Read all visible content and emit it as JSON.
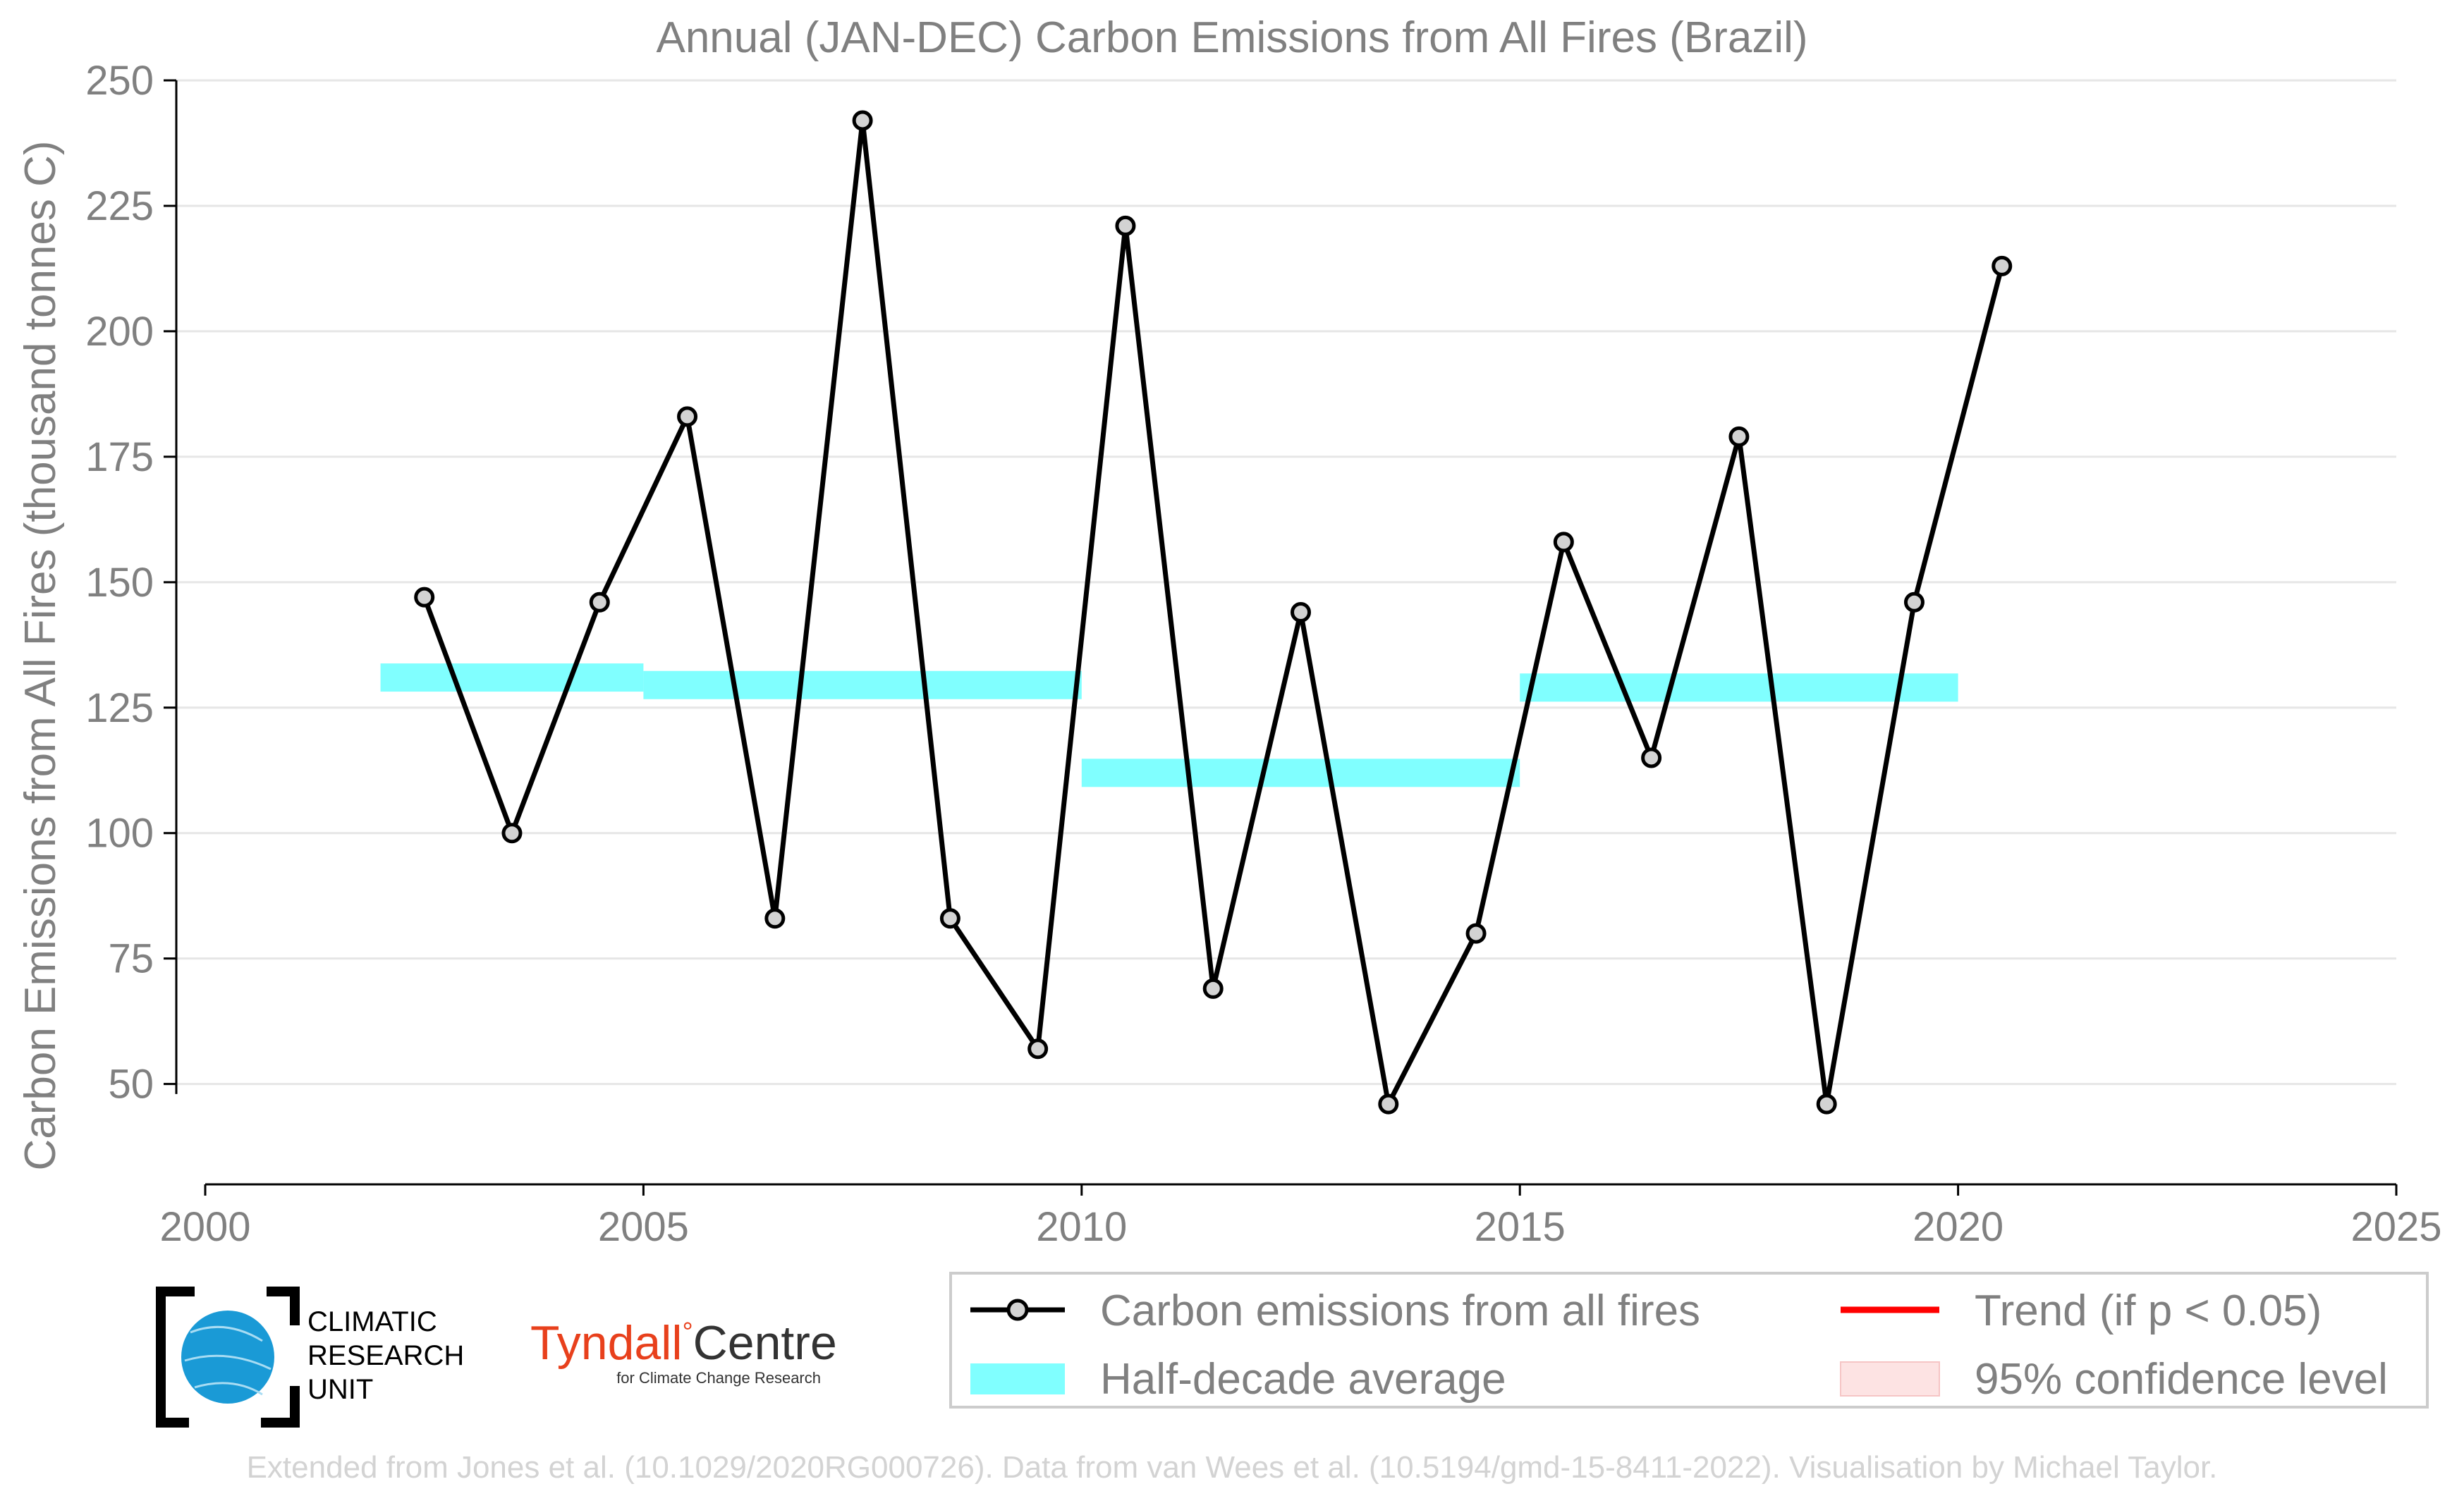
{
  "chart_data": {
    "type": "line",
    "title": "Annual (JAN-DEC) Carbon Emissions from All Fires (Brazil)",
    "xlabel": "",
    "ylabel": "Carbon Emissions from All Fires (thousand tonnes C)",
    "xlim": [
      2000,
      2025
    ],
    "ylim": [
      30,
      250
    ],
    "xticks": [
      "2000",
      "2005",
      "2010",
      "2015",
      "2020",
      "2025"
    ],
    "yticks": [
      "50",
      "75",
      "100",
      "125",
      "150",
      "175",
      "200",
      "225",
      "250"
    ],
    "grid": "horizontal",
    "series": [
      {
        "name": "Carbon emissions from all fires",
        "color": "#000000",
        "marker_fill": "#d3d3d3",
        "x": [
          2002.5,
          2003.5,
          2004.5,
          2005.5,
          2006.5,
          2007.5,
          2008.5,
          2009.5,
          2010.5,
          2011.5,
          2012.5,
          2013.5,
          2014.5,
          2015.5,
          2016.5,
          2017.5,
          2018.5,
          2019.5,
          2020.5
        ],
        "y": [
          147,
          100,
          146,
          183,
          83,
          242,
          83,
          57,
          221,
          69,
          144,
          46,
          80,
          158,
          115,
          179,
          46,
          146,
          213
        ]
      },
      {
        "name": "Half-decade average",
        "color": "#80ffff",
        "segments": [
          {
            "x0": 2002,
            "x1": 2005,
            "y": 131
          },
          {
            "x0": 2005,
            "x1": 2010,
            "y": 129.5
          },
          {
            "x0": 2010,
            "x1": 2015,
            "y": 112
          },
          {
            "x0": 2015,
            "x1": 2020,
            "y": 129
          }
        ]
      }
    ],
    "legend": {
      "position": "bottom-right",
      "entries": [
        {
          "label": "Carbon emissions from all fires",
          "color": "#000000",
          "kind": "line-marker"
        },
        {
          "label": "Trend (if p < 0.05)",
          "color": "#ff0000",
          "kind": "line"
        },
        {
          "label": "Half-decade average",
          "color": "#80ffff",
          "kind": "band"
        },
        {
          "label": "95% confidence level",
          "color": "#fde3e3",
          "kind": "patch"
        }
      ]
    }
  },
  "logos": {
    "cru": {
      "line1": "CLIMATIC",
      "line2": "RESEARCH",
      "line3": "UNIT"
    },
    "tyndall": {
      "name1": "Tyndall",
      "degree": "°",
      "name2": "Centre",
      "sub": "for Climate Change Research"
    }
  },
  "credit": "Extended from Jones et al. (10.1029/2020RG000726). Data from van Wees et al. (10.5194/gmd-15-8411-2022). Visualisation by Michael Taylor."
}
